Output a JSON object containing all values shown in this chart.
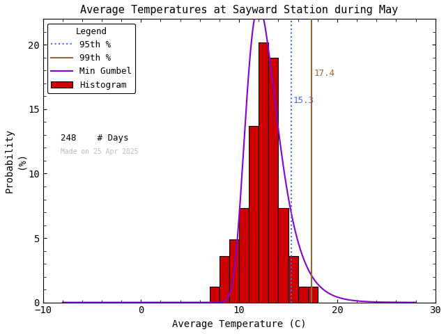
{
  "title": "Average Temperatures at Sayward Station during May",
  "xlabel": "Average Temperature (C)",
  "ylabel_line1": "Probability",
  "ylabel_line2": "(%)",
  "xlim": [
    -10,
    30
  ],
  "ylim": [
    0,
    22
  ],
  "xticks": [
    -10,
    0,
    10,
    20,
    30
  ],
  "yticks": [
    0,
    5,
    10,
    15,
    20
  ],
  "bar_lefts": [
    7,
    8,
    9,
    10,
    11,
    12,
    13,
    14,
    15,
    16,
    17
  ],
  "bar_heights": [
    1.2,
    3.6,
    4.9,
    7.3,
    13.7,
    20.2,
    19.0,
    7.3,
    3.6,
    1.2,
    1.2
  ],
  "bar_color": "#cc0000",
  "bar_edgecolor": "#000000",
  "gumbel_mu": 12.0,
  "gumbel_beta": 1.6,
  "percentile_95": 15.3,
  "percentile_99": 17.4,
  "n_days": 248,
  "watermark": "Made on 25 Apr 2025",
  "watermark_color": "#bbbbbb",
  "line_95_color": "#4466ff",
  "line_99_color": "#996633",
  "gumbel_color": "#8800cc",
  "background_color": "#ffffff",
  "title_fontsize": 11,
  "axis_fontsize": 10,
  "tick_fontsize": 10,
  "legend_fontsize": 9
}
